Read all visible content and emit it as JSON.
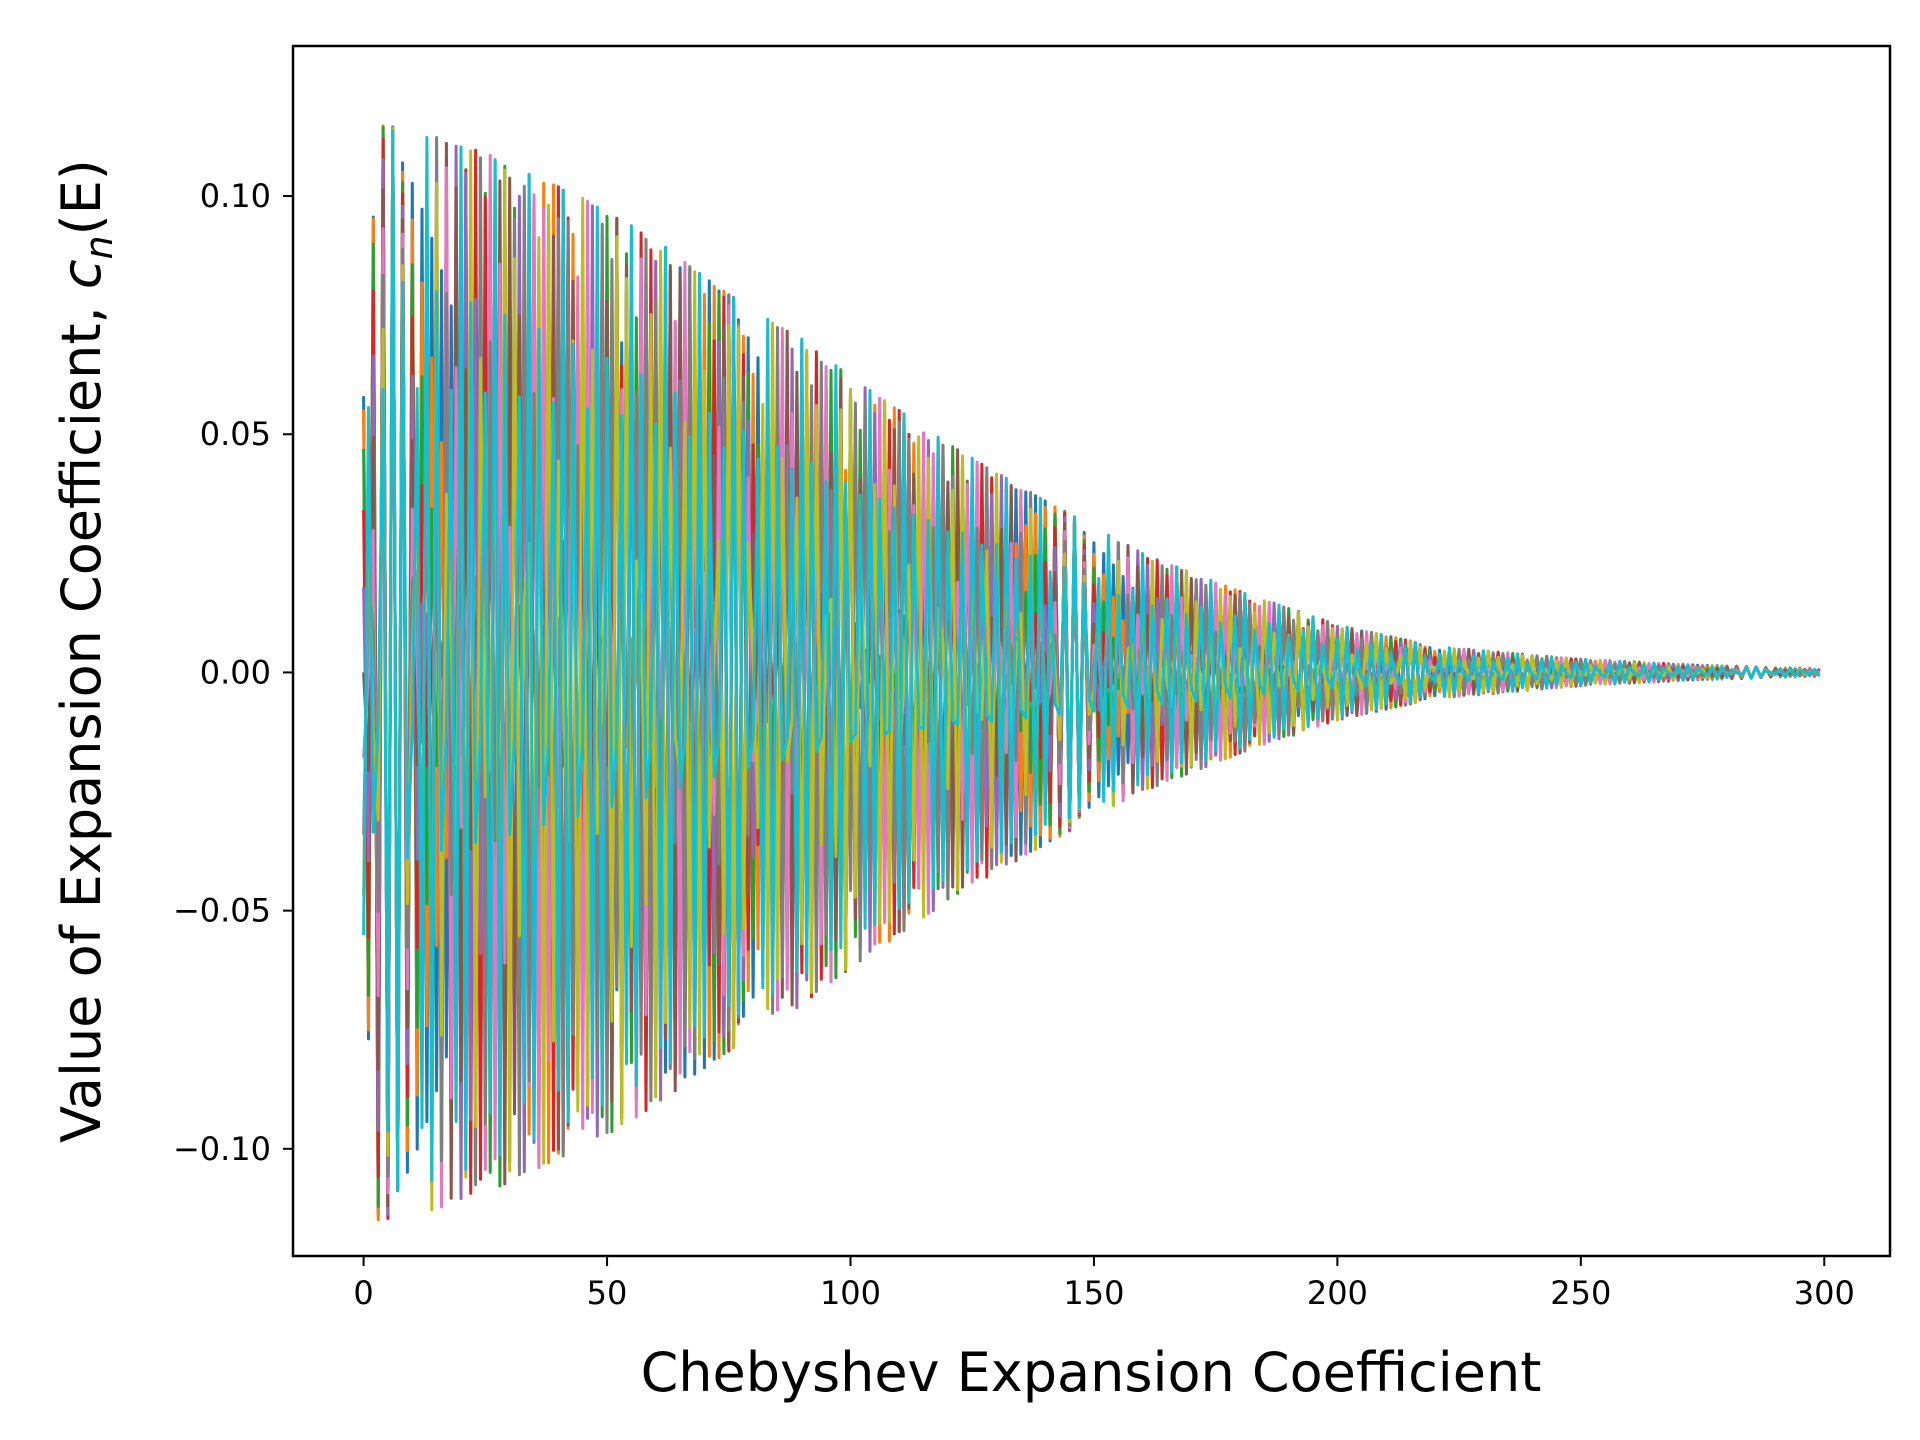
{
  "chart_data": {
    "type": "line",
    "xlabel": "Chebyshev Expansion Coefficient",
    "ylabel_text": "Value of Expansion Coefficient, ",
    "ylabel_math_base": "c",
    "ylabel_math_sub": "n",
    "ylabel_math_arg": "(E)",
    "xlim": [
      -14.5,
      313.5
    ],
    "ylim": [
      -0.1225,
      0.1315
    ],
    "x_ticks": [
      0,
      50,
      100,
      150,
      200,
      250,
      300
    ],
    "x_tick_labels": [
      "0",
      "50",
      "100",
      "150",
      "200",
      "250",
      "300"
    ],
    "y_ticks": [
      -0.1,
      -0.05,
      0.0,
      0.05,
      0.1
    ],
    "y_tick_labels": [
      "−0.10",
      "−0.05",
      "0.00",
      "0.05",
      "0.10"
    ],
    "n_coefficients": 300,
    "n_series": 10,
    "envelope": [
      {
        "x": 0,
        "amp": 0.058
      },
      {
        "x": 3,
        "amp": 0.115
      },
      {
        "x": 10,
        "amp": 0.114
      },
      {
        "x": 20,
        "amp": 0.111
      },
      {
        "x": 30,
        "amp": 0.107
      },
      {
        "x": 40,
        "amp": 0.102
      },
      {
        "x": 50,
        "amp": 0.097
      },
      {
        "x": 60,
        "amp": 0.091
      },
      {
        "x": 70,
        "amp": 0.083
      },
      {
        "x": 80,
        "amp": 0.076
      },
      {
        "x": 90,
        "amp": 0.07
      },
      {
        "x": 100,
        "amp": 0.062
      },
      {
        "x": 120,
        "amp": 0.048
      },
      {
        "x": 140,
        "amp": 0.036
      },
      {
        "x": 160,
        "amp": 0.025
      },
      {
        "x": 180,
        "amp": 0.017
      },
      {
        "x": 200,
        "amp": 0.01
      },
      {
        "x": 220,
        "amp": 0.0055
      },
      {
        "x": 250,
        "amp": 0.0028
      },
      {
        "x": 275,
        "amp": 0.0015
      },
      {
        "x": 299,
        "amp": 0.0008
      }
    ],
    "series_colors": [
      "#1f77b4",
      "#ff7f0e",
      "#2ca02c",
      "#d62728",
      "#9467bd",
      "#8c564b",
      "#e377c2",
      "#7f7f7f",
      "#bcbd22",
      "#17becf"
    ],
    "grid": false,
    "legend": "none"
  }
}
